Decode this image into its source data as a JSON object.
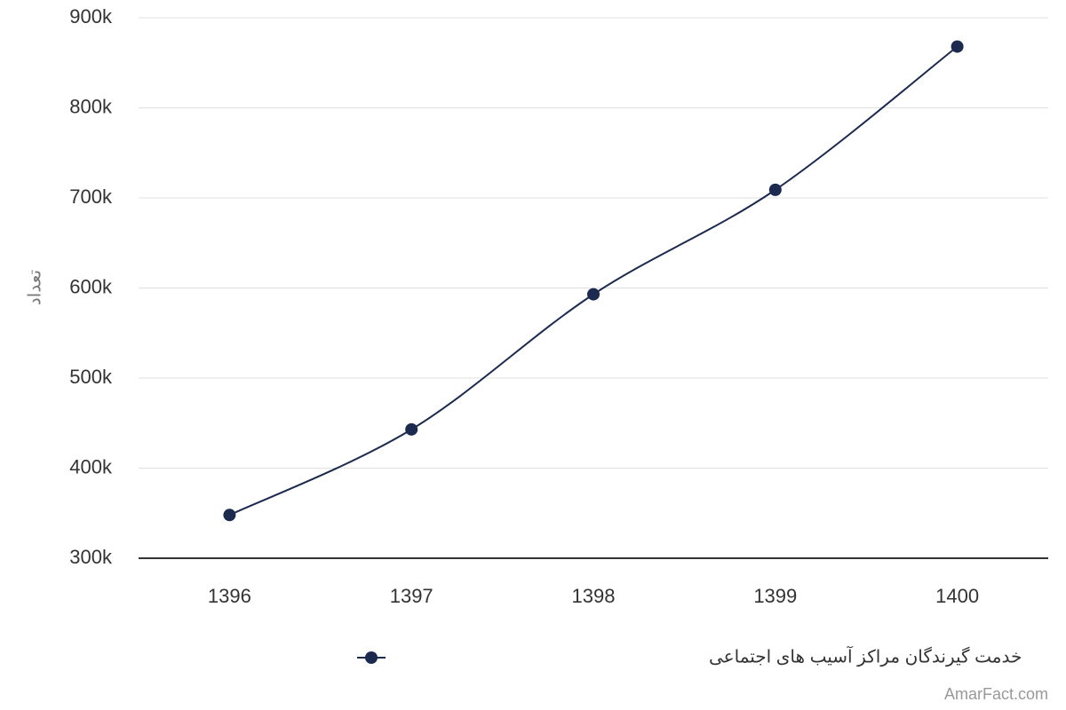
{
  "chart_data": {
    "type": "line",
    "y_label": "تعداد",
    "categories": [
      "1396",
      "1397",
      "1398",
      "1399",
      "1400"
    ],
    "series": [
      {
        "name": "خدمت گیرندگان مراکز آسیب های اجتماعی",
        "color": "#1b2a4e",
        "values": [
          348000,
          443000,
          593000,
          709000,
          868000
        ]
      }
    ],
    "ylim": [
      300000,
      900000
    ],
    "yticks": [
      {
        "value": 300000,
        "label": "300k"
      },
      {
        "value": 400000,
        "label": "400k"
      },
      {
        "value": 500000,
        "label": "500k"
      },
      {
        "value": 600000,
        "label": "600k"
      },
      {
        "value": 700000,
        "label": "700k"
      },
      {
        "value": 800000,
        "label": "800k"
      },
      {
        "value": 900000,
        "label": "900k"
      }
    ],
    "grid": true,
    "watermark": "AmarFact.com"
  }
}
